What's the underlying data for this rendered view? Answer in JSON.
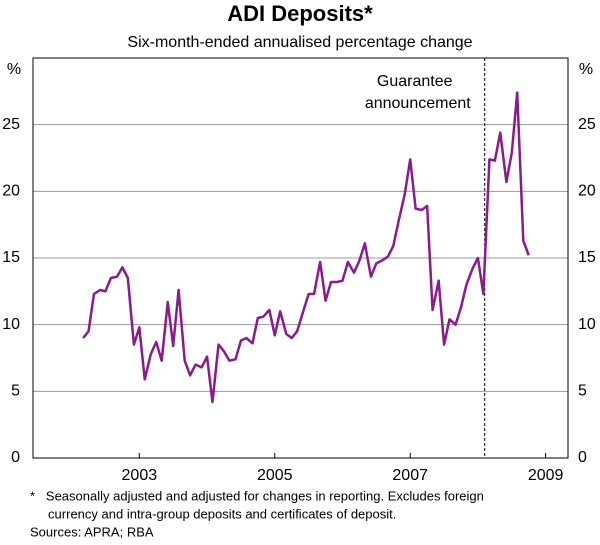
{
  "chart_data": {
    "type": "line",
    "title": "ADI Deposits*",
    "subtitle": "Six-month-ended annualised percentage change",
    "y_unit": "%",
    "x": [
      2002.67,
      2002.75,
      2002.83,
      2002.92,
      2003.0,
      2003.08,
      2003.17,
      2003.25,
      2003.33,
      2003.42,
      2003.5,
      2003.58,
      2003.67,
      2003.75,
      2003.83,
      2003.92,
      2004.0,
      2004.08,
      2004.17,
      2004.25,
      2004.33,
      2004.42,
      2004.5,
      2004.58,
      2004.67,
      2004.75,
      2004.83,
      2004.92,
      2005.0,
      2005.08,
      2005.17,
      2005.25,
      2005.33,
      2005.42,
      2005.5,
      2005.58,
      2005.67,
      2005.75,
      2005.83,
      2005.92,
      2006.0,
      2006.08,
      2006.17,
      2006.25,
      2006.33,
      2006.42,
      2006.5,
      2006.58,
      2006.67,
      2006.75,
      2006.83,
      2006.92,
      2007.0,
      2007.08,
      2007.17,
      2007.25,
      2007.33,
      2007.42,
      2007.5,
      2007.58,
      2007.67,
      2007.75,
      2007.83,
      2007.92,
      2008.0,
      2008.08,
      2008.17,
      2008.25,
      2008.33,
      2008.42,
      2008.5,
      2008.58,
      2008.67,
      2008.75,
      2008.83,
      2008.92,
      2009.0,
      2009.08,
      2009.17,
      2009.25
    ],
    "series": [
      {
        "name": "ADI deposits",
        "color": "#8b1a8b",
        "values": [
          9.0,
          9.5,
          12.3,
          12.6,
          12.5,
          13.5,
          13.6,
          14.3,
          13.5,
          8.5,
          9.8,
          5.9,
          7.8,
          8.7,
          7.3,
          11.7,
          8.4,
          12.6,
          7.3,
          6.2,
          7.0,
          6.8,
          7.6,
          4.2,
          8.5,
          8.0,
          7.3,
          7.4,
          8.8,
          9.0,
          8.6,
          10.5,
          10.6,
          11.1,
          9.2,
          11.0,
          9.3,
          9.0,
          9.5,
          11.0,
          12.3,
          12.3,
          14.7,
          11.8,
          13.2,
          13.2,
          13.3,
          14.7,
          13.9,
          14.8,
          16.1,
          13.6,
          14.6,
          14.8,
          15.1,
          15.9,
          17.8,
          19.8,
          22.4,
          18.7,
          18.6,
          18.9,
          11.1,
          13.3,
          8.5,
          10.4,
          10.0,
          11.3,
          13.0,
          14.2,
          15.0,
          12.3,
          22.4,
          22.3,
          24.4,
          20.7,
          22.9,
          27.4,
          16.3,
          15.2
        ]
      }
    ],
    "xlim": [
      2001.93,
      2009.83
    ],
    "xticks": [
      {
        "value": 2003.5,
        "label": "2003"
      },
      {
        "value": 2005.5,
        "label": "2005"
      },
      {
        "value": 2007.5,
        "label": "2007"
      },
      {
        "value": 2009.5,
        "label": "2009"
      }
    ],
    "ylim": [
      0,
      30
    ],
    "yticks": [
      0,
      5,
      10,
      15,
      20,
      25
    ],
    "grid": true,
    "annotation": {
      "x": 2008.6,
      "lines": [
        "Guarantee",
        "announcement"
      ]
    },
    "notes": [
      "*   Seasonally adjusted and adjusted for changes in reporting. Excludes foreign",
      "     currency and intra-group deposits and certificates of deposit.",
      "Sources: APRA; RBA"
    ]
  }
}
